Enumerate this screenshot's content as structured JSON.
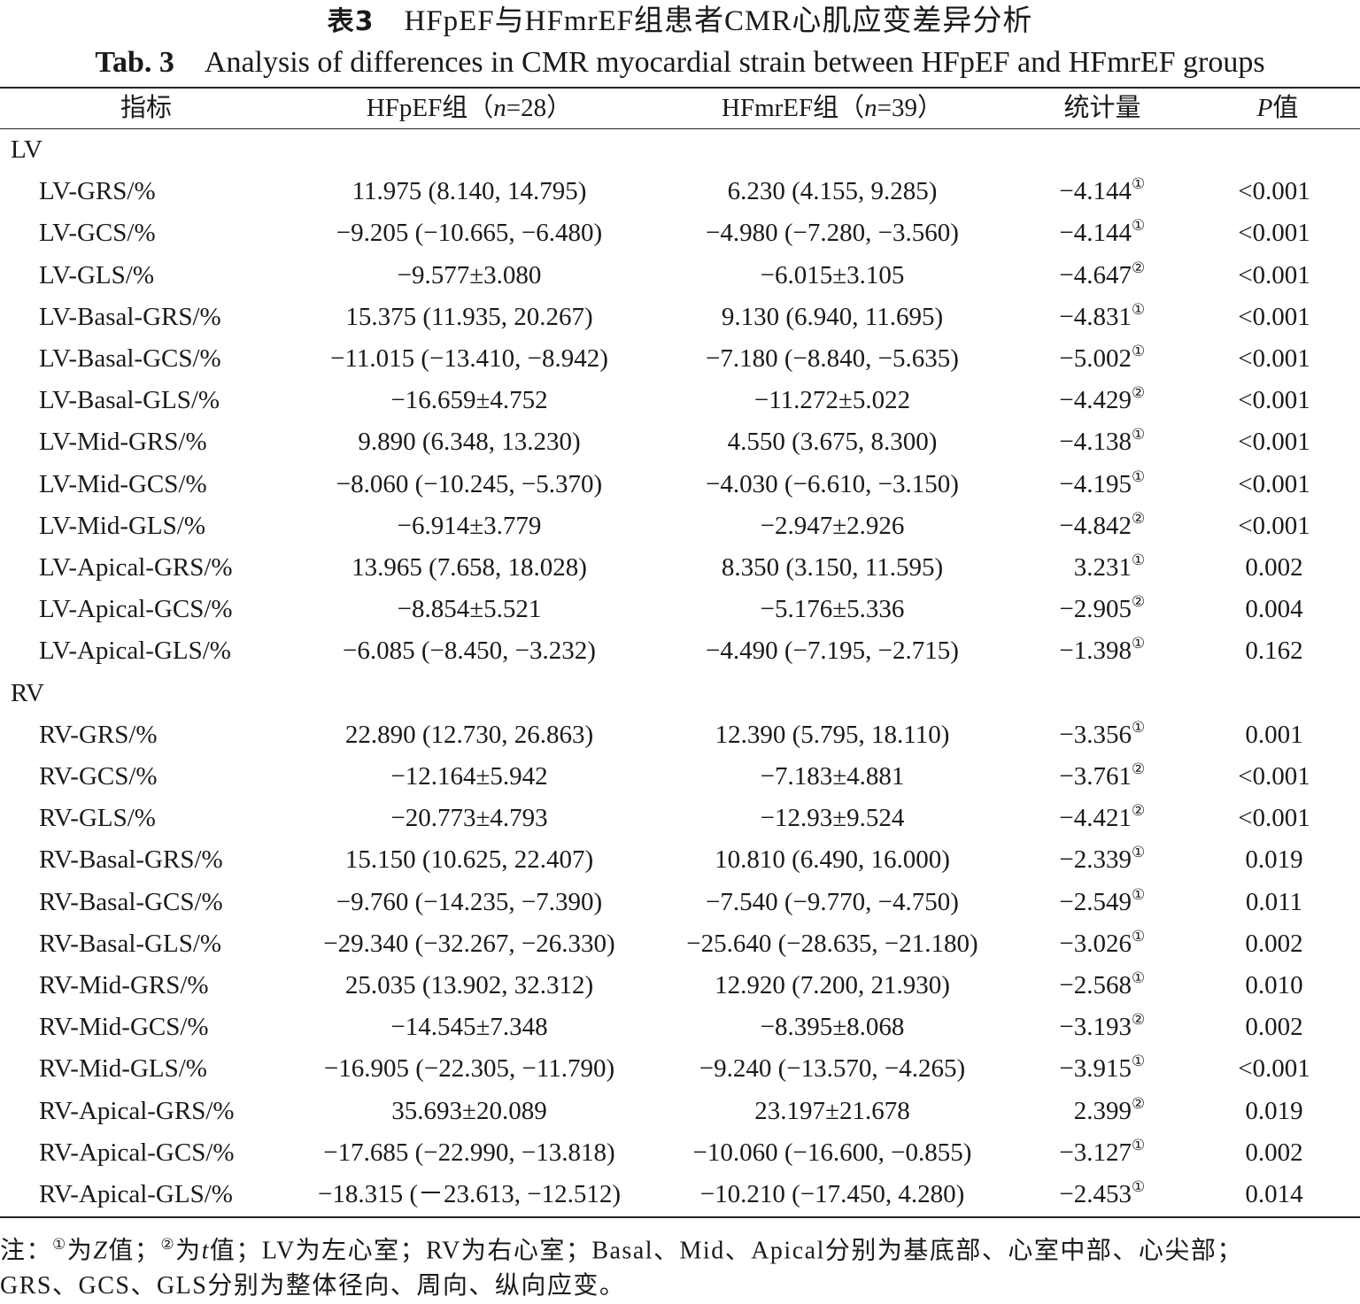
{
  "title": {
    "cn_label": "表3",
    "cn_text": "HFpEF与HFmrEF组患者CMR心肌应变差异分析",
    "en_label": "Tab. 3",
    "en_text": "Analysis of differences in CMR myocardial strain between HFpEF and HFmrEF groups"
  },
  "header": {
    "indicator": "指标",
    "hfpef": "HFpEF组（n=28）",
    "hfmref": "HFmrEF组（n=39）",
    "statistic": "统计量",
    "p_value": "P值"
  },
  "sections": [
    {
      "label": "LV",
      "rows": [
        {
          "name": "LV-GRS/%",
          "hfpef": "11.975 (8.140, 14.795)",
          "hfmref": "6.230 (4.155, 9.285)",
          "stat": "−4.144",
          "note": "①",
          "p": "<0.001"
        },
        {
          "name": "LV-GCS/%",
          "hfpef": "−9.205 (−10.665, −6.480)",
          "hfmref": "−4.980 (−7.280, −3.560)",
          "stat": "−4.144",
          "note": "①",
          "p": "<0.001"
        },
        {
          "name": "LV-GLS/%",
          "hfpef": "−9.577±3.080",
          "hfmref": "−6.015±3.105",
          "stat": "−4.647",
          "note": "②",
          "p": "<0.001"
        },
        {
          "name": "LV-Basal-GRS/%",
          "hfpef": "15.375 (11.935, 20.267)",
          "hfmref": "9.130 (6.940, 11.695)",
          "stat": "−4.831",
          "note": "①",
          "p": "<0.001"
        },
        {
          "name": "LV-Basal-GCS/%",
          "hfpef": "−11.015 (−13.410, −8.942)",
          "hfmref": "−7.180 (−8.840, −5.635)",
          "stat": "−5.002",
          "note": "①",
          "p": "<0.001"
        },
        {
          "name": "LV-Basal-GLS/%",
          "hfpef": "−16.659±4.752",
          "hfmref": "−11.272±5.022",
          "stat": "−4.429",
          "note": "②",
          "p": "<0.001"
        },
        {
          "name": "LV-Mid-GRS/%",
          "hfpef": "9.890 (6.348, 13.230)",
          "hfmref": "4.550 (3.675, 8.300)",
          "stat": "−4.138",
          "note": "①",
          "p": "<0.001"
        },
        {
          "name": "LV-Mid-GCS/%",
          "hfpef": "−8.060 (−10.245, −5.370)",
          "hfmref": "−4.030 (−6.610, −3.150)",
          "stat": "−4.195",
          "note": "①",
          "p": "<0.001"
        },
        {
          "name": "LV-Mid-GLS/%",
          "hfpef": "−6.914±3.779",
          "hfmref": "−2.947±2.926",
          "stat": "−4.842",
          "note": "②",
          "p": "<0.001"
        },
        {
          "name": "LV-Apical-GRS/%",
          "hfpef": "13.965 (7.658, 18.028)",
          "hfmref": "8.350 (3.150, 11.595)",
          "stat": "3.231",
          "note": "①",
          "p": "0.002"
        },
        {
          "name": "LV-Apical-GCS/%",
          "hfpef": "−8.854±5.521",
          "hfmref": "−5.176±5.336",
          "stat": "−2.905",
          "note": "②",
          "p": "0.004"
        },
        {
          "name": "LV-Apical-GLS/%",
          "hfpef": "−6.085 (−8.450, −3.232)",
          "hfmref": "−4.490 (−7.195, −2.715)",
          "stat": "−1.398",
          "note": "①",
          "p": "0.162"
        }
      ]
    },
    {
      "label": "RV",
      "rows": [
        {
          "name": "RV-GRS/%",
          "hfpef": "22.890 (12.730, 26.863)",
          "hfmref": "12.390 (5.795, 18.110)",
          "stat": "−3.356",
          "note": "①",
          "p": "0.001"
        },
        {
          "name": "RV-GCS/%",
          "hfpef": "−12.164±5.942",
          "hfmref": "−7.183±4.881",
          "stat": "−3.761",
          "note": "②",
          "p": "<0.001"
        },
        {
          "name": "RV-GLS/%",
          "hfpef": "−20.773±4.793",
          "hfmref": "−12.93±9.524",
          "stat": "−4.421",
          "note": "②",
          "p": "<0.001"
        },
        {
          "name": "RV-Basal-GRS/%",
          "hfpef": "15.150 (10.625, 22.407)",
          "hfmref": "10.810 (6.490, 16.000)",
          "stat": "−2.339",
          "note": "①",
          "p": "0.019"
        },
        {
          "name": "RV-Basal-GCS/%",
          "hfpef": "−9.760 (−14.235, −7.390)",
          "hfmref": "−7.540 (−9.770, −4.750)",
          "stat": "−2.549",
          "note": "①",
          "p": "0.011"
        },
        {
          "name": "RV-Basal-GLS/%",
          "hfpef": "−29.340 (−32.267, −26.330)",
          "hfmref": "−25.640 (−28.635, −21.180)",
          "stat": "−3.026",
          "note": "①",
          "p": "0.002"
        },
        {
          "name": "RV-Mid-GRS/%",
          "hfpef": "25.035 (13.902, 32.312)",
          "hfmref": "12.920 (7.200, 21.930)",
          "stat": "−2.568",
          "note": "①",
          "p": "0.010"
        },
        {
          "name": "RV-Mid-GCS/%",
          "hfpef": "−14.545±7.348",
          "hfmref": "−8.395±8.068",
          "stat": "−3.193",
          "note": "②",
          "p": "0.002"
        },
        {
          "name": "RV-Mid-GLS/%",
          "hfpef": "−16.905 (−22.305, −11.790)",
          "hfmref": "−9.240 (−13.570, −4.265)",
          "stat": "−3.915",
          "note": "①",
          "p": "<0.001"
        },
        {
          "name": "RV-Apical-GRS/%",
          "hfpef": "35.693±20.089",
          "hfmref": "23.197±21.678",
          "stat": "2.399",
          "note": "②",
          "p": "0.019"
        },
        {
          "name": "RV-Apical-GCS/%",
          "hfpef": "−17.685 (−22.990, −13.818)",
          "hfmref": "−10.060 (−16.600, −0.855)",
          "stat": "−3.127",
          "note": "①",
          "p": "0.002"
        },
        {
          "name": "RV-Apical-GLS/%",
          "hfpef": "−18.315 (－23.613, −12.512)",
          "hfmref": "−10.210 (−17.450, 4.280)",
          "stat": "−2.453",
          "note": "①",
          "p": "0.014"
        }
      ]
    }
  ],
  "footnote": {
    "prefix": "注：",
    "mark1": "①",
    "text1a": "为",
    "text1b": "Z",
    "text1c": "值；",
    "mark2": "②",
    "text2a": "为",
    "text2b": "t",
    "text2c": "值；LV为左心室；RV为右心室；Basal、Mid、Apical分别为基底部、心室中部、心尖部；",
    "line2": "GRS、GCS、GLS分别为整体径向、周向、纵向应变。"
  }
}
